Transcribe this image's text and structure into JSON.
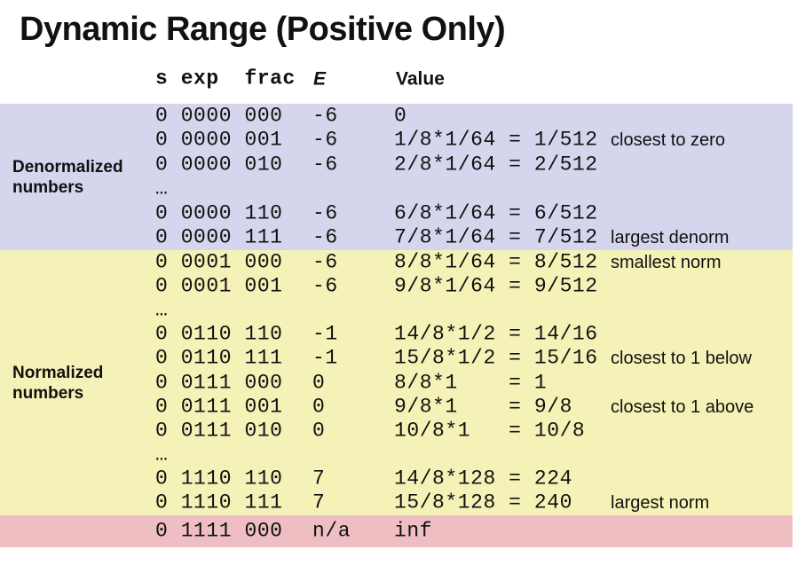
{
  "slide": {
    "title": "Dynamic Range (Positive Only)"
  },
  "colors": {
    "denormalized_band_bg": "#d5d5ee",
    "normalized_band_bg": "#f4f2b6",
    "special_band_bg": "#eebec2",
    "text": "#111111",
    "page_bg": "#ffffff"
  },
  "table": {
    "header": {
      "bits": "s exp  frac",
      "exponent": "E",
      "value": "Value"
    },
    "groups": [
      {
        "label": "Denormalized numbers",
        "rows": [
          {
            "bits": "0 0000 000",
            "e": "-6",
            "value": "0",
            "note": ""
          },
          {
            "bits": "0 0000 001",
            "e": "-6",
            "value": "1/8*1/64 = 1/512",
            "note": "closest to zero"
          },
          {
            "bits": "0 0000 010",
            "e": "-6",
            "value": "2/8*1/64 = 2/512",
            "note": ""
          },
          {
            "bits": "…",
            "e": "",
            "value": "",
            "note": ""
          },
          {
            "bits": "0 0000 110",
            "e": "-6",
            "value": "6/8*1/64 = 6/512",
            "note": ""
          },
          {
            "bits": "0 0000 111",
            "e": "-6",
            "value": "7/8*1/64 = 7/512",
            "note": "largest denorm"
          }
        ]
      },
      {
        "label": "Normalized numbers",
        "rows": [
          {
            "bits": "0 0001 000",
            "e": "-6",
            "value": "8/8*1/64 = 8/512",
            "note": "smallest norm"
          },
          {
            "bits": "0 0001 001",
            "e": "-6",
            "value": "9/8*1/64 = 9/512",
            "note": ""
          },
          {
            "bits": "…",
            "e": "",
            "value": "",
            "note": ""
          },
          {
            "bits": "0 0110 110",
            "e": "-1",
            "value": "14/8*1/2 = 14/16",
            "note": ""
          },
          {
            "bits": "0 0110 111",
            "e": "-1",
            "value": "15/8*1/2 = 15/16",
            "note": "closest to 1 below"
          },
          {
            "bits": "0 0111 000",
            "e": "0",
            "value": "8/8*1    = 1",
            "note": ""
          },
          {
            "bits": "0 0111 001",
            "e": "0",
            "value": "9/8*1    = 9/8",
            "note": "closest to 1 above"
          },
          {
            "bits": "0 0111 010",
            "e": "0",
            "value": "10/8*1   = 10/8",
            "note": ""
          },
          {
            "bits": "…",
            "e": "",
            "value": "",
            "note": ""
          },
          {
            "bits": "0 1110 110",
            "e": "7",
            "value": "14/8*128 = 224",
            "note": ""
          },
          {
            "bits": "0 1110 111",
            "e": "7",
            "value": "15/8*128 = 240",
            "note": "largest norm"
          }
        ]
      },
      {
        "label": "",
        "rows": [
          {
            "bits": "0 1111 000",
            "e": "n/a",
            "value": "inf",
            "note": ""
          }
        ]
      }
    ]
  }
}
